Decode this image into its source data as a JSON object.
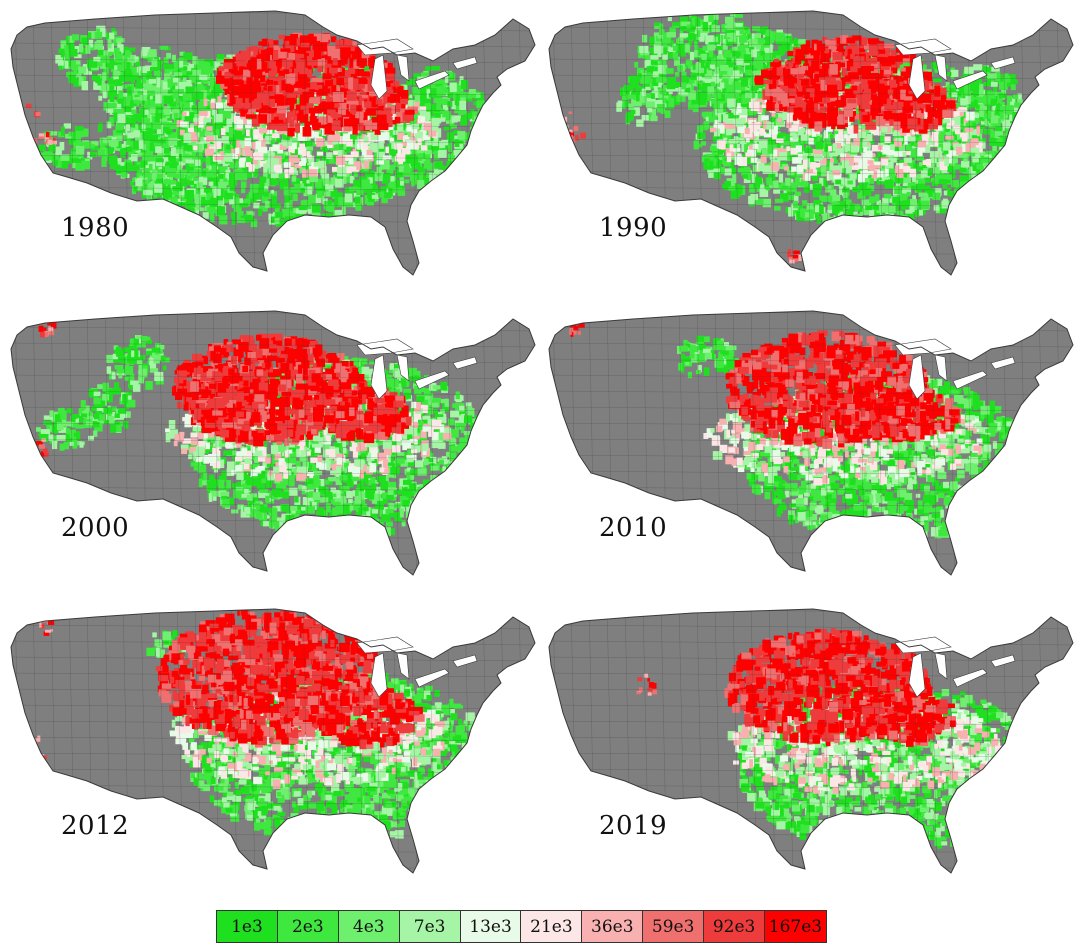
{
  "panels": [
    {
      "year": "1980",
      "profile": 0
    },
    {
      "year": "1990",
      "profile": 1
    },
    {
      "year": "2000",
      "profile": 2
    },
    {
      "year": "2010",
      "profile": 3
    },
    {
      "year": "2012",
      "profile": 4
    },
    {
      "year": "2019",
      "profile": 5
    }
  ],
  "legend": {
    "labels": [
      "1e3",
      "2e3",
      "4e3",
      "7e3",
      "13e3",
      "21e3",
      "36e3",
      "59e3",
      "92e3",
      "167e3"
    ],
    "colors": [
      "#1fe01f",
      "#3ee83e",
      "#6ef06e",
      "#a6f5a6",
      "#e8fbe8",
      "#fde6e6",
      "#f8b0b0",
      "#f07070",
      "#ee3b3b",
      "#ff0000"
    ]
  },
  "colors": {
    "no_data": "#7f7f7f",
    "water": "#ffffff",
    "border": "#3a3a3a"
  }
}
